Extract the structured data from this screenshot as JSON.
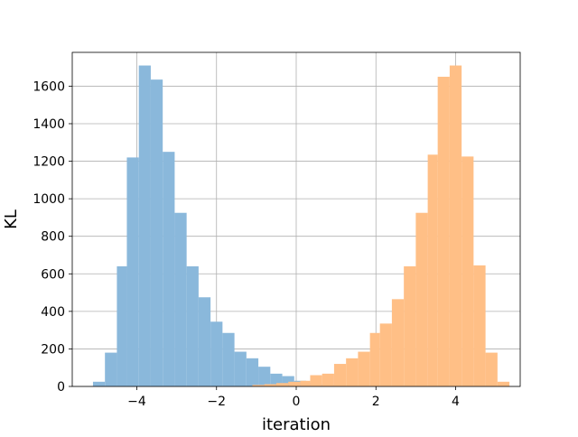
{
  "chart_data": {
    "type": "bar",
    "subtype": "overlapping-histogram",
    "xlabel": "iteration",
    "ylabel": "KL",
    "xlim": [
      -5.62,
      5.62
    ],
    "ylim": [
      0,
      1780
    ],
    "xticks": [
      -4,
      -2,
      0,
      2,
      4
    ],
    "xtick_labels": [
      "−4",
      "−2",
      "0",
      "2",
      "4"
    ],
    "yticks": [
      0,
      200,
      400,
      600,
      800,
      1000,
      1200,
      1400,
      1600
    ],
    "ytick_labels": [
      "0",
      "200",
      "400",
      "600",
      "800",
      "1000",
      "1200",
      "1400",
      "1600"
    ],
    "grid": true,
    "series": [
      {
        "color": "#8ab8db",
        "bins": [
          {
            "x0": -5.1,
            "x1": -4.8,
            "value": 25
          },
          {
            "x0": -4.8,
            "x1": -4.5,
            "value": 180
          },
          {
            "x0": -4.5,
            "x1": -4.25,
            "value": 640
          },
          {
            "x0": -4.25,
            "x1": -3.95,
            "value": 1220
          },
          {
            "x0": -3.95,
            "x1": -3.65,
            "value": 1710
          },
          {
            "x0": -3.65,
            "x1": -3.35,
            "value": 1635
          },
          {
            "x0": -3.35,
            "x1": -3.05,
            "value": 1250
          },
          {
            "x0": -3.05,
            "x1": -2.75,
            "value": 925
          },
          {
            "x0": -2.75,
            "x1": -2.45,
            "value": 640
          },
          {
            "x0": -2.45,
            "x1": -2.15,
            "value": 475
          },
          {
            "x0": -2.15,
            "x1": -1.85,
            "value": 345
          },
          {
            "x0": -1.85,
            "x1": -1.55,
            "value": 285
          },
          {
            "x0": -1.55,
            "x1": -1.25,
            "value": 185
          },
          {
            "x0": -1.25,
            "x1": -0.95,
            "value": 150
          },
          {
            "x0": -0.95,
            "x1": -0.65,
            "value": 105
          },
          {
            "x0": -0.65,
            "x1": -0.35,
            "value": 68
          },
          {
            "x0": -0.35,
            "x1": -0.05,
            "value": 55
          },
          {
            "x0": -0.05,
            "x1": 0.25,
            "value": 30
          },
          {
            "x0": 0.25,
            "x1": 0.55,
            "value": 20
          },
          {
            "x0": 0.55,
            "x1": 0.85,
            "value": 12
          },
          {
            "x0": 0.85,
            "x1": 1.15,
            "value": 8
          }
        ]
      },
      {
        "color": "#ffbf86",
        "bins": [
          {
            "x0": -1.1,
            "x1": -0.8,
            "value": 8
          },
          {
            "x0": -0.8,
            "x1": -0.5,
            "value": 12
          },
          {
            "x0": -0.5,
            "x1": -0.2,
            "value": 18
          },
          {
            "x0": -0.2,
            "x1": 0.1,
            "value": 25
          },
          {
            "x0": 0.1,
            "x1": 0.35,
            "value": 30
          },
          {
            "x0": 0.35,
            "x1": 0.65,
            "value": 60
          },
          {
            "x0": 0.65,
            "x1": 0.95,
            "value": 68
          },
          {
            "x0": 0.95,
            "x1": 1.25,
            "value": 120
          },
          {
            "x0": 1.25,
            "x1": 1.55,
            "value": 150
          },
          {
            "x0": 1.55,
            "x1": 1.85,
            "value": 185
          },
          {
            "x0": 1.85,
            "x1": 2.1,
            "value": 285
          },
          {
            "x0": 2.1,
            "x1": 2.4,
            "value": 335
          },
          {
            "x0": 2.4,
            "x1": 2.7,
            "value": 465
          },
          {
            "x0": 2.7,
            "x1": 3.0,
            "value": 640
          },
          {
            "x0": 3.0,
            "x1": 3.3,
            "value": 925
          },
          {
            "x0": 3.3,
            "x1": 3.55,
            "value": 1235
          },
          {
            "x0": 3.55,
            "x1": 3.85,
            "value": 1650
          },
          {
            "x0": 3.85,
            "x1": 4.15,
            "value": 1710
          },
          {
            "x0": 4.15,
            "x1": 4.45,
            "value": 1225
          },
          {
            "x0": 4.45,
            "x1": 4.75,
            "value": 645
          },
          {
            "x0": 4.75,
            "x1": 5.05,
            "value": 180
          },
          {
            "x0": 5.05,
            "x1": 5.35,
            "value": 25
          }
        ]
      }
    ]
  }
}
